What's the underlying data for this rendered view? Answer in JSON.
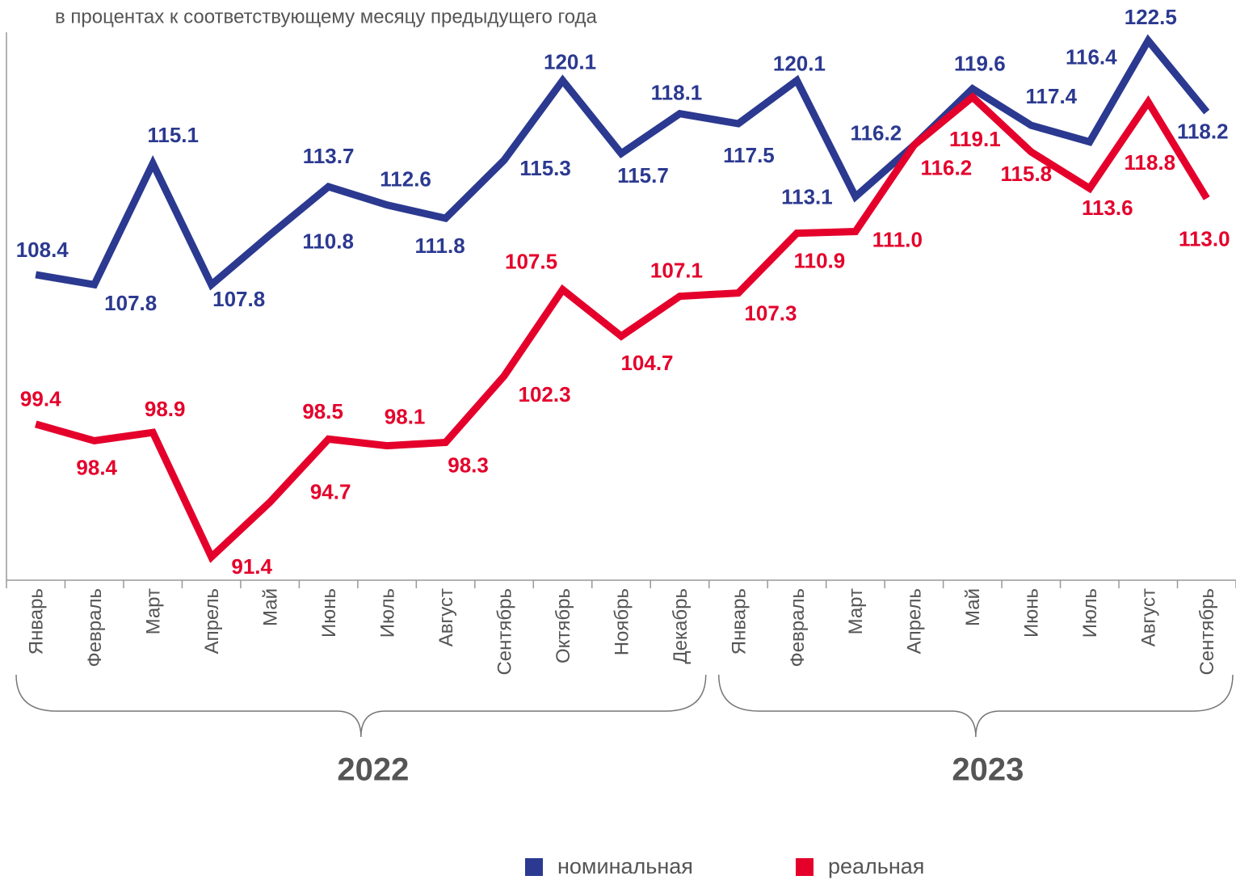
{
  "chart_data": {
    "type": "line",
    "subtitle": "в процентах к соответствующему месяцу предыдущего года",
    "categories": [
      "Январь",
      "Февраль",
      "Март",
      "Апрель",
      "Май",
      "Июнь",
      "Июль",
      "Август",
      "Сентябрь",
      "Октябрь",
      "Ноябрь",
      "Декабрь",
      "Январь",
      "Февраль",
      "Март",
      "Апрель",
      "Май",
      "Июнь",
      "Июль",
      "Август",
      "Сентябрь"
    ],
    "groups": [
      "2022",
      "2023"
    ],
    "ylim": [
      90,
      123
    ],
    "series": [
      {
        "name": "номинальная",
        "color": "#2b3990",
        "values": [
          108.4,
          107.8,
          115.1,
          107.8,
          110.8,
          113.7,
          112.6,
          111.8,
          115.3,
          120.1,
          115.7,
          118.1,
          117.5,
          120.1,
          113.1,
          116.2,
          119.6,
          117.4,
          116.4,
          122.5,
          118.2
        ],
        "value_labels": [
          "108.4",
          "107.8",
          "115.1",
          "107.8",
          "110.8",
          "113.7",
          "112.6",
          "111.8",
          "115.3",
          "120.1",
          "115.7",
          "118.1",
          "117.5",
          "120.1",
          "113.1",
          "116.2",
          "119.6",
          "117.4",
          "116.4",
          "122.5",
          "118.2"
        ]
      },
      {
        "name": "реальная",
        "color": "#e4002b",
        "values": [
          99.4,
          98.4,
          98.9,
          91.4,
          94.7,
          98.5,
          98.1,
          98.3,
          102.3,
          107.5,
          104.7,
          107.1,
          107.3,
          110.9,
          111.0,
          116.2,
          119.1,
          115.8,
          113.6,
          118.8,
          113.0
        ],
        "value_labels": [
          "99.4",
          "98.4",
          "98.9",
          "91.4",
          "94.7",
          "98.5",
          "98.1",
          "98.3",
          "102.3",
          "107.5",
          "104.7",
          "107.1",
          "107.3",
          "110.9",
          "111.0",
          "116.2",
          "119.1",
          "115.8",
          "113.6",
          "118.8",
          "113.0"
        ]
      }
    ]
  }
}
